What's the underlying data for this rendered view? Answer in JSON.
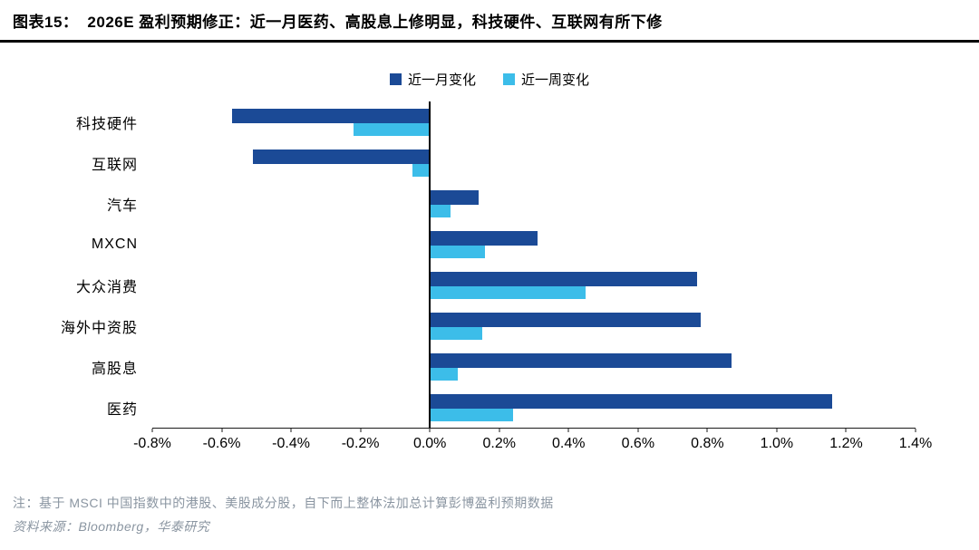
{
  "header": {
    "fig_no": "图表15：",
    "title": "2026E 盈利预期修正：近一月医药、高股息上修明显，科技硬件、互联网有所下修"
  },
  "chart_data": {
    "type": "bar",
    "orientation": "horizontal",
    "title": "2026E 盈利预期修正",
    "categories": [
      "科技硬件",
      "互联网",
      "汽车",
      "MXCN",
      "大众消费",
      "海外中资股",
      "高股息",
      "医药"
    ],
    "series": [
      {
        "name": "近一月变化",
        "color": "#1b4a96",
        "values": [
          -0.57,
          -0.51,
          0.14,
          0.31,
          0.77,
          0.78,
          0.87,
          1.16
        ]
      },
      {
        "name": "近一周变化",
        "color": "#3cbde9",
        "values": [
          -0.22,
          -0.05,
          0.06,
          0.16,
          0.45,
          0.15,
          0.08,
          0.24
        ]
      }
    ],
    "xlim": [
      -0.8,
      1.4
    ],
    "x_tick_values": [
      -0.8,
      -0.6,
      -0.4,
      -0.2,
      0.0,
      0.2,
      0.4,
      0.6,
      0.8,
      1.0,
      1.2,
      1.4
    ],
    "x_tick_labels": [
      "-0.8%",
      "-0.6%",
      "-0.4%",
      "-0.2%",
      "0.0%",
      "0.2%",
      "0.4%",
      "0.6%",
      "0.8%",
      "1.0%",
      "1.2%",
      "1.4%"
    ],
    "legend_position": "top",
    "grid": false
  },
  "footnotes": {
    "note": "注：基于 MSCI 中国指数中的港股、美股成分股，自下而上整体法加总计算彭博盈利预期数据",
    "source": "资料来源：Bloomberg，华泰研究"
  }
}
